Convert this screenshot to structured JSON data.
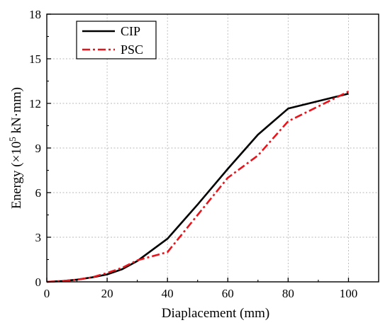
{
  "chart_data": {
    "type": "line",
    "xlabel": "Diaplacement (mm)",
    "ylabel": {
      "prefix": "Energy (×10",
      "superscript": "5",
      "suffix": " kN·mm)"
    },
    "xlim": [
      0,
      110
    ],
    "ylim": [
      0,
      18
    ],
    "x_ticks": [
      0,
      20,
      40,
      60,
      80,
      100
    ],
    "y_ticks": [
      0,
      3,
      6,
      9,
      12,
      15,
      18
    ],
    "grid": true,
    "legend_position": "top-left",
    "series": [
      {
        "name": "CIP",
        "color": "#000000",
        "line_style": "solid",
        "points": [
          [
            0,
            0
          ],
          [
            5,
            0.05
          ],
          [
            10,
            0.15
          ],
          [
            15,
            0.3
          ],
          [
            20,
            0.5
          ],
          [
            25,
            0.85
          ],
          [
            30,
            1.4
          ],
          [
            40,
            2.9
          ],
          [
            50,
            5.2
          ],
          [
            60,
            7.6
          ],
          [
            70,
            9.9
          ],
          [
            80,
            11.65
          ],
          [
            100,
            12.65
          ]
        ]
      },
      {
        "name": "PSC",
        "color": "#e8141b",
        "line_style": "dash-dot",
        "points": [
          [
            0,
            0
          ],
          [
            5,
            0.05
          ],
          [
            10,
            0.15
          ],
          [
            15,
            0.3
          ],
          [
            20,
            0.6
          ],
          [
            25,
            0.95
          ],
          [
            30,
            1.45
          ],
          [
            40,
            2.0
          ],
          [
            50,
            4.5
          ],
          [
            60,
            7.0
          ],
          [
            70,
            8.5
          ],
          [
            80,
            10.8
          ],
          [
            100,
            12.8
          ]
        ]
      }
    ]
  }
}
